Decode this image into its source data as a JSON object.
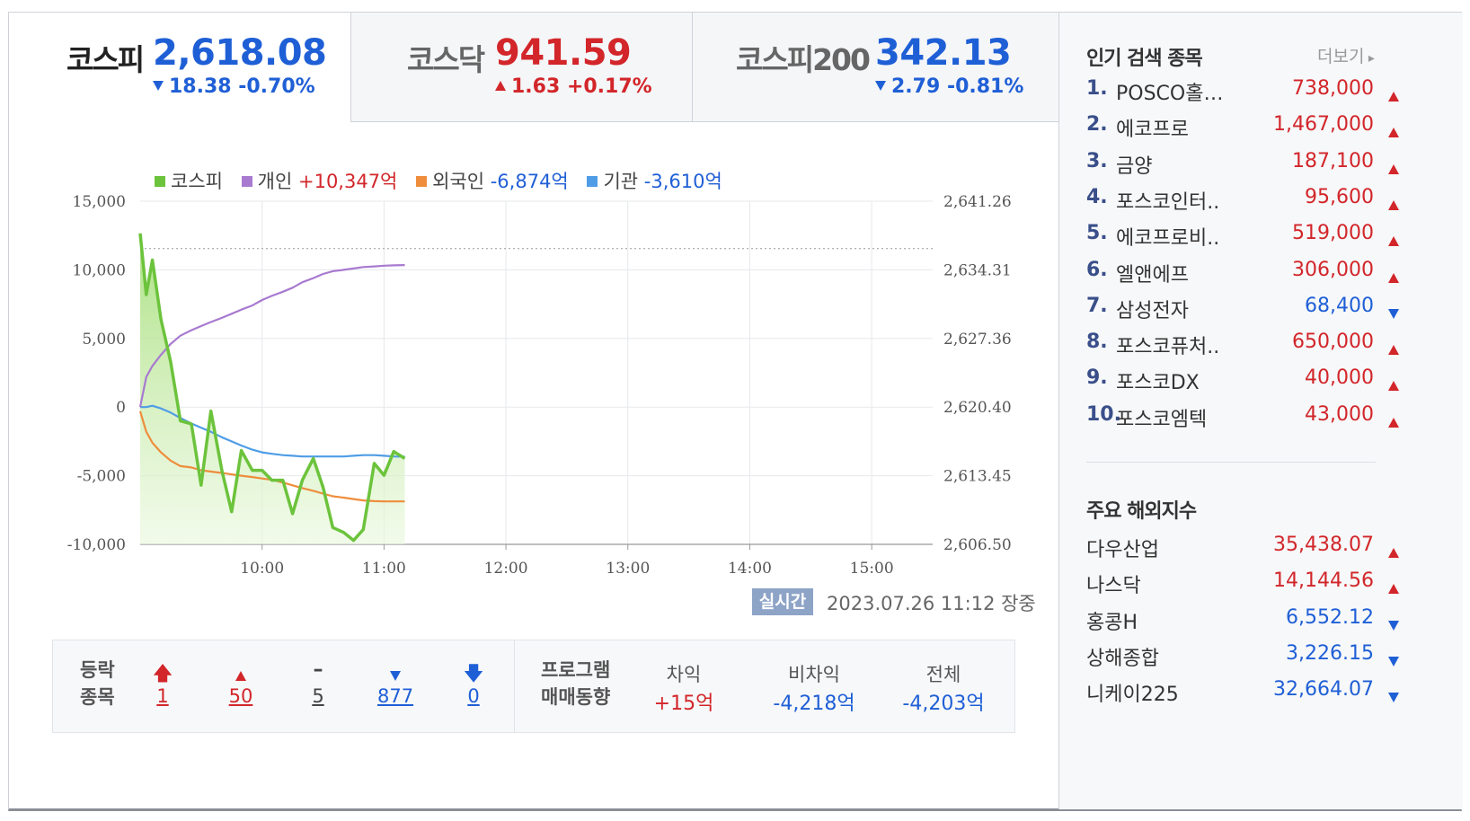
{
  "tabs": [
    {
      "name": "코스피",
      "value": "2,618.08",
      "change": "18.38 -0.70%",
      "dir": "down",
      "active": true
    },
    {
      "name": "코스닥",
      "value": "941.59",
      "change": "1.63 +0.17%",
      "dir": "up",
      "active": false
    },
    {
      "name": "코스피200",
      "value": "342.13",
      "change": "2.79 -0.81%",
      "dir": "down",
      "active": false
    }
  ],
  "legend": {
    "kospi": {
      "label": "코스피",
      "color": "#6cc33c"
    },
    "individual": {
      "label": "개인",
      "value": "+10,347억",
      "color": "#a87ad0"
    },
    "foreign": {
      "label": "외국인",
      "value": "-6,874억",
      "color": "#ee8d3c"
    },
    "institution": {
      "label": "기관",
      "value": "-3,610억",
      "color": "#4f9de6"
    }
  },
  "chart_data": {
    "type": "line",
    "left_axis_ticks": [
      "15,000",
      "10,000",
      "5,000",
      "0",
      "-5,000",
      "-10,000"
    ],
    "right_axis_ticks": [
      "2,641.26",
      "2,634.31",
      "2,627.36",
      "2,620.40",
      "2,613.45",
      "2,606.50"
    ],
    "x_ticks": [
      "10:00",
      "11:00",
      "12:00",
      "13:00",
      "14:00",
      "15:00"
    ],
    "ylim": [
      -10000,
      15000
    ],
    "ylim_right": [
      2606.5,
      2641.26
    ],
    "previous_close": 2636.46,
    "x": [
      9.0,
      9.05,
      9.1,
      9.17,
      9.25,
      9.33,
      9.42,
      9.5,
      9.58,
      9.67,
      9.75,
      9.83,
      9.92,
      10.0,
      10.08,
      10.17,
      10.25,
      10.33,
      10.42,
      10.5,
      10.58,
      10.67,
      10.75,
      10.83,
      10.92,
      11.0,
      11.08,
      11.17
    ],
    "series": [
      {
        "name": "코스피",
        "axis": "right",
        "values": [
          2638.0,
          2631.8,
          2635.3,
          2629.3,
          2625.0,
          2619.0,
          2618.7,
          2612.5,
          2620.0,
          2614.0,
          2609.8,
          2616.0,
          2614.0,
          2614.0,
          2613.0,
          2613.0,
          2609.6,
          2613.0,
          2615.2,
          2612.3,
          2608.2,
          2607.7,
          2606.9,
          2608.0,
          2614.7,
          2613.5,
          2615.9,
          2615.2
        ]
      },
      {
        "name": "개인",
        "axis": "left",
        "values": [
          0,
          2200,
          3000,
          3800,
          4600,
          5200,
          5600,
          5900,
          6200,
          6500,
          6800,
          7100,
          7400,
          7800,
          8100,
          8400,
          8700,
          9100,
          9400,
          9700,
          9900,
          10000,
          10100,
          10200,
          10250,
          10300,
          10330,
          10347
        ]
      },
      {
        "name": "외국인",
        "axis": "left",
        "values": [
          -300,
          -1800,
          -2600,
          -3300,
          -3900,
          -4300,
          -4400,
          -4600,
          -4700,
          -4800,
          -4900,
          -5000,
          -5100,
          -5200,
          -5300,
          -5500,
          -5700,
          -5900,
          -6100,
          -6300,
          -6500,
          -6600,
          -6700,
          -6800,
          -6850,
          -6870,
          -6874,
          -6874
        ]
      },
      {
        "name": "기관",
        "axis": "left",
        "values": [
          0,
          0,
          100,
          -100,
          -400,
          -800,
          -1200,
          -1500,
          -1800,
          -2200,
          -2500,
          -2800,
          -3100,
          -3300,
          -3400,
          -3500,
          -3550,
          -3600,
          -3600,
          -3600,
          -3600,
          -3600,
          -3550,
          -3500,
          -3500,
          -3550,
          -3600,
          -3610
        ]
      }
    ]
  },
  "realtime": {
    "badge": "실시간",
    "datetime": "2023.07.26 11:12 장중"
  },
  "breadth": {
    "label_line1": "등락",
    "label_line2": "종목",
    "items": [
      {
        "icon": "limit-up-arrow-icon",
        "count": "1",
        "dir": "up"
      },
      {
        "icon": "up-triangle-icon",
        "count": "50",
        "dir": "up"
      },
      {
        "icon": "flat-dash-icon",
        "count": "5",
        "dir": "flat"
      },
      {
        "icon": "down-triangle-icon",
        "count": "877",
        "dir": "down"
      },
      {
        "icon": "limit-down-arrow-icon",
        "count": "0",
        "dir": "down"
      }
    ]
  },
  "program": {
    "label_line1": "프로그램",
    "label_line2": "매매동향",
    "cols": [
      {
        "header": "차익",
        "value": "+15억",
        "dir": "up"
      },
      {
        "header": "비차익",
        "value": "-4,218억",
        "dir": "down"
      },
      {
        "header": "전체",
        "value": "-4,203억",
        "dir": "down"
      }
    ]
  },
  "popular": {
    "title": "인기 검색 종목",
    "more": "더보기",
    "items": [
      {
        "rank": "1.",
        "name": "POSCO홀…",
        "price": "738,000",
        "dir": "up"
      },
      {
        "rank": "2.",
        "name": "에코프로",
        "price": "1,467,000",
        "dir": "up"
      },
      {
        "rank": "3.",
        "name": "금양",
        "price": "187,100",
        "dir": "up"
      },
      {
        "rank": "4.",
        "name": "포스코인터..",
        "price": "95,600",
        "dir": "up"
      },
      {
        "rank": "5.",
        "name": "에코프로비..",
        "price": "519,000",
        "dir": "up"
      },
      {
        "rank": "6.",
        "name": "엘앤에프",
        "price": "306,000",
        "dir": "up"
      },
      {
        "rank": "7.",
        "name": "삼성전자",
        "price": "68,400",
        "dir": "down"
      },
      {
        "rank": "8.",
        "name": "포스코퓨처..",
        "price": "650,000",
        "dir": "up"
      },
      {
        "rank": "9.",
        "name": "포스코DX",
        "price": "40,000",
        "dir": "up"
      },
      {
        "rank": "10.",
        "name": "포스코엠텍",
        "price": "43,000",
        "dir": "up"
      }
    ]
  },
  "overseas": {
    "title": "주요 해외지수",
    "items": [
      {
        "name": "다우산업",
        "price": "35,438.07",
        "dir": "up"
      },
      {
        "name": "나스닥",
        "price": "14,144.56",
        "dir": "up"
      },
      {
        "name": "홍콩H",
        "price": "6,552.12",
        "dir": "down"
      },
      {
        "name": "상해종합",
        "price": "3,226.15",
        "dir": "down"
      },
      {
        "name": "니케이225",
        "price": "32,664.07",
        "dir": "down"
      }
    ]
  }
}
